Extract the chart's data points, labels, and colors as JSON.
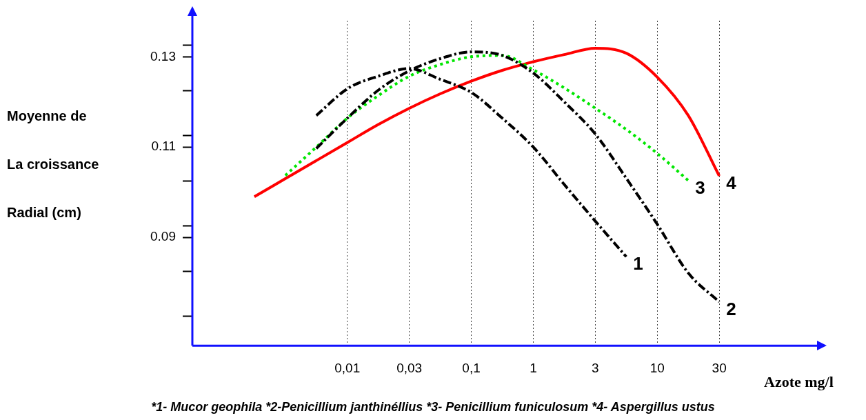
{
  "chart_data": {
    "type": "line",
    "xlabel": "Azote mg/l",
    "ylabel": "Moyenne de La croissance Radial (cm)",
    "annotations": [
      "*1- Mucor geophila  *2-Penicillium  janthinéllius *3- Penicillium funiculosum *4- Aspergillus ustus"
    ],
    "categories": [
      null,
      null,
      null,
      null,
      null,
      "0,01",
      null,
      "0,03",
      null,
      "0,1",
      null,
      "1",
      null,
      "3",
      null,
      "10",
      null,
      "30",
      null,
      null,
      null
    ],
    "ylim": [
      0.066,
      0.138
    ],
    "yticks": [
      {
        "value": 0.0725,
        "label": null
      },
      {
        "value": 0.0825,
        "label": null
      },
      0.09,
      {
        "value": 0.0925,
        "label": null
      },
      {
        "value": 0.1025,
        "label": null
      },
      0.11,
      {
        "value": 0.1125,
        "label": null
      },
      {
        "value": 0.1225,
        "label": null
      },
      0.13,
      {
        "value": 0.1325,
        "label": null
      }
    ],
    "grid": "x",
    "legend": false,
    "marker": "none",
    "series": [
      {
        "name": "1",
        "color": "#000000",
        "line_style": "dashed",
        "values": [
          null,
          null,
          null,
          null,
          0.117,
          0.1229,
          0.1257,
          0.1274,
          0.125,
          0.1221,
          0.1164,
          0.11,
          0.1017,
          0.0936,
          0.0857,
          null,
          null,
          null,
          null,
          null,
          null
        ]
      },
      {
        "name": "2",
        "color": "#000000",
        "line_style": "dashed",
        "values": [
          null,
          null,
          null,
          null,
          0.1097,
          0.1164,
          0.1226,
          0.1269,
          0.1296,
          0.1311,
          0.1303,
          0.1264,
          0.12,
          0.1129,
          0.1031,
          0.0929,
          0.0821,
          0.0757,
          null,
          null,
          null
        ]
      },
      {
        "name": "3",
        "color": "#00e600",
        "line_style": "dotted",
        "values": [
          null,
          null,
          null,
          0.1037,
          0.11,
          0.1164,
          0.1214,
          0.1257,
          0.1283,
          0.13,
          0.1303,
          0.1271,
          0.1231,
          0.1186,
          0.1139,
          0.1086,
          0.1026,
          null,
          null,
          null,
          null
        ]
      },
      {
        "name": "4",
        "color": "#ff0000",
        "line_style": "solid",
        "values": [
          null,
          null,
          0.099,
          0.103,
          0.107,
          0.111,
          0.115,
          0.1186,
          0.1218,
          0.1246,
          0.127,
          0.1289,
          0.1305,
          0.1319,
          0.1308,
          0.1255,
          0.117,
          0.1036,
          null,
          null,
          null
        ]
      }
    ]
  }
}
